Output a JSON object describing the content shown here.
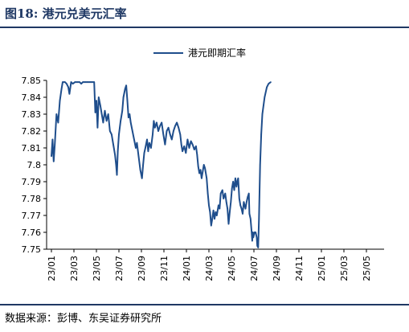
{
  "figure": {
    "title": "图18:  港元兑美元汇率",
    "source": "数据来源：彭博、东吴证券研究所"
  },
  "chart_data": {
    "type": "line",
    "title": "",
    "xlabel": "",
    "ylabel": "",
    "legend": {
      "position": "top-center"
    },
    "grid": false,
    "line_color": "#1f4e8c",
    "ylim": [
      7.75,
      7.85
    ],
    "yticks": [
      "7.85",
      "7.84",
      "7.83",
      "7.82",
      "7.81",
      "7.8",
      "7.79",
      "7.78",
      "7.77",
      "7.76",
      "7.75"
    ],
    "xticks": [
      "23/01",
      "23/03",
      "23/05",
      "23/07",
      "23/09",
      "23/11",
      "24/01",
      "24/03",
      "24/05",
      "24/07",
      "24/09",
      "24/11",
      "25/01",
      "25/03",
      "25/05"
    ],
    "x_unit": "months since 23/01",
    "series": [
      {
        "name": "港元即期汇率",
        "points": [
          [
            0.0,
            7.805
          ],
          [
            0.1,
            7.815
          ],
          [
            0.2,
            7.802
          ],
          [
            0.3,
            7.812
          ],
          [
            0.45,
            7.83
          ],
          [
            0.6,
            7.825
          ],
          [
            0.75,
            7.838
          ],
          [
            0.9,
            7.845
          ],
          [
            1.0,
            7.849
          ],
          [
            1.2,
            7.849
          ],
          [
            1.35,
            7.848
          ],
          [
            1.5,
            7.846
          ],
          [
            1.6,
            7.842
          ],
          [
            1.75,
            7.849
          ],
          [
            1.9,
            7.848
          ],
          [
            2.1,
            7.849
          ],
          [
            2.3,
            7.849
          ],
          [
            2.5,
            7.849
          ],
          [
            2.65,
            7.848
          ],
          [
            2.8,
            7.849
          ],
          [
            3.0,
            7.849
          ],
          [
            3.2,
            7.849
          ],
          [
            3.45,
            7.849
          ],
          [
            3.6,
            7.849
          ],
          [
            3.8,
            7.849
          ],
          [
            3.9,
            7.831
          ],
          [
            4.0,
            7.838
          ],
          [
            4.1,
            7.822
          ],
          [
            4.2,
            7.84
          ],
          [
            4.35,
            7.835
          ],
          [
            4.5,
            7.829
          ],
          [
            4.6,
            7.825
          ],
          [
            4.75,
            7.832
          ],
          [
            4.9,
            7.826
          ],
          [
            5.05,
            7.83
          ],
          [
            5.2,
            7.82
          ],
          [
            5.35,
            7.818
          ],
          [
            5.5,
            7.812
          ],
          [
            5.65,
            7.806
          ],
          [
            5.75,
            7.8
          ],
          [
            5.82,
            7.794
          ],
          [
            5.9,
            7.808
          ],
          [
            6.0,
            7.818
          ],
          [
            6.15,
            7.826
          ],
          [
            6.3,
            7.832
          ],
          [
            6.4,
            7.84
          ],
          [
            6.55,
            7.845
          ],
          [
            6.65,
            7.847
          ],
          [
            6.75,
            7.838
          ],
          [
            6.85,
            7.828
          ],
          [
            6.95,
            7.83
          ],
          [
            7.05,
            7.825
          ],
          [
            7.2,
            7.82
          ],
          [
            7.35,
            7.815
          ],
          [
            7.5,
            7.81
          ],
          [
            7.6,
            7.813
          ],
          [
            7.75,
            7.805
          ],
          [
            7.9,
            7.797
          ],
          [
            8.05,
            7.792
          ],
          [
            8.15,
            7.8
          ],
          [
            8.25,
            7.807
          ],
          [
            8.35,
            7.81
          ],
          [
            8.5,
            7.815
          ],
          [
            8.6,
            7.808
          ],
          [
            8.7,
            7.813
          ],
          [
            8.85,
            7.81
          ],
          [
            9.0,
            7.818
          ],
          [
            9.1,
            7.826
          ],
          [
            9.2,
            7.822
          ],
          [
            9.35,
            7.825
          ],
          [
            9.5,
            7.82
          ],
          [
            9.65,
            7.823
          ],
          [
            9.8,
            7.825
          ],
          [
            9.95,
            7.818
          ],
          [
            10.1,
            7.812
          ],
          [
            10.25,
            7.82
          ],
          [
            10.4,
            7.822
          ],
          [
            10.55,
            7.818
          ],
          [
            10.7,
            7.815
          ],
          [
            10.85,
            7.82
          ],
          [
            11.0,
            7.823
          ],
          [
            11.15,
            7.825
          ],
          [
            11.3,
            7.822
          ],
          [
            11.45,
            7.818
          ],
          [
            11.55,
            7.812
          ],
          [
            11.65,
            7.808
          ],
          [
            11.8,
            7.811
          ],
          [
            11.95,
            7.807
          ],
          [
            12.1,
            7.815
          ],
          [
            12.25,
            7.81
          ],
          [
            12.4,
            7.814
          ],
          [
            12.55,
            7.812
          ],
          [
            12.7,
            7.809
          ],
          [
            12.85,
            7.811
          ],
          [
            12.95,
            7.806
          ],
          [
            13.05,
            7.799
          ],
          [
            13.15,
            7.795
          ],
          [
            13.25,
            7.797
          ],
          [
            13.35,
            7.792
          ],
          [
            13.45,
            7.796
          ],
          [
            13.55,
            7.8
          ],
          [
            13.65,
            7.798
          ],
          [
            13.8,
            7.792
          ],
          [
            13.9,
            7.783
          ],
          [
            14.0,
            7.776
          ],
          [
            14.1,
            7.772
          ],
          [
            14.2,
            7.764
          ],
          [
            14.3,
            7.768
          ],
          [
            14.4,
            7.773
          ],
          [
            14.5,
            7.768
          ],
          [
            14.6,
            7.772
          ],
          [
            14.7,
            7.77
          ],
          [
            14.85,
            7.776
          ],
          [
            14.95,
            7.774
          ],
          [
            15.05,
            7.783
          ],
          [
            15.2,
            7.785
          ],
          [
            15.3,
            7.78
          ],
          [
            15.45,
            7.783
          ],
          [
            15.55,
            7.778
          ],
          [
            15.65,
            7.774
          ],
          [
            15.75,
            7.765
          ],
          [
            15.85,
            7.772
          ],
          [
            15.95,
            7.778
          ],
          [
            16.05,
            7.786
          ],
          [
            16.15,
            7.79
          ],
          [
            16.25,
            7.785
          ],
          [
            16.35,
            7.792
          ],
          [
            16.45,
            7.787
          ],
          [
            16.55,
            7.791
          ],
          [
            16.6,
            7.792
          ],
          [
            16.7,
            7.78
          ],
          [
            16.8,
            7.776
          ],
          [
            16.9,
            7.774
          ],
          [
            17.0,
            7.771
          ],
          [
            17.1,
            7.778
          ],
          [
            17.25,
            7.774
          ],
          [
            17.35,
            7.778
          ],
          [
            17.45,
            7.781
          ],
          [
            17.55,
            7.783
          ],
          [
            17.6,
            7.771
          ],
          [
            17.7,
            7.768
          ],
          [
            17.8,
            7.76
          ],
          [
            17.85,
            7.755
          ],
          [
            17.9,
            7.76
          ],
          [
            17.95,
            7.757
          ],
          [
            18.05,
            7.76
          ],
          [
            18.15,
            7.76
          ],
          [
            18.25,
            7.757
          ],
          [
            18.3,
            7.752
          ],
          [
            18.38,
            7.751
          ],
          [
            18.45,
            7.768
          ],
          [
            18.55,
            7.8
          ],
          [
            18.65,
            7.818
          ],
          [
            18.75,
            7.83
          ],
          [
            18.85,
            7.835
          ],
          [
            18.95,
            7.84
          ],
          [
            19.05,
            7.843
          ],
          [
            19.15,
            7.846
          ],
          [
            19.3,
            7.848
          ],
          [
            19.5,
            7.849
          ]
        ]
      }
    ]
  }
}
